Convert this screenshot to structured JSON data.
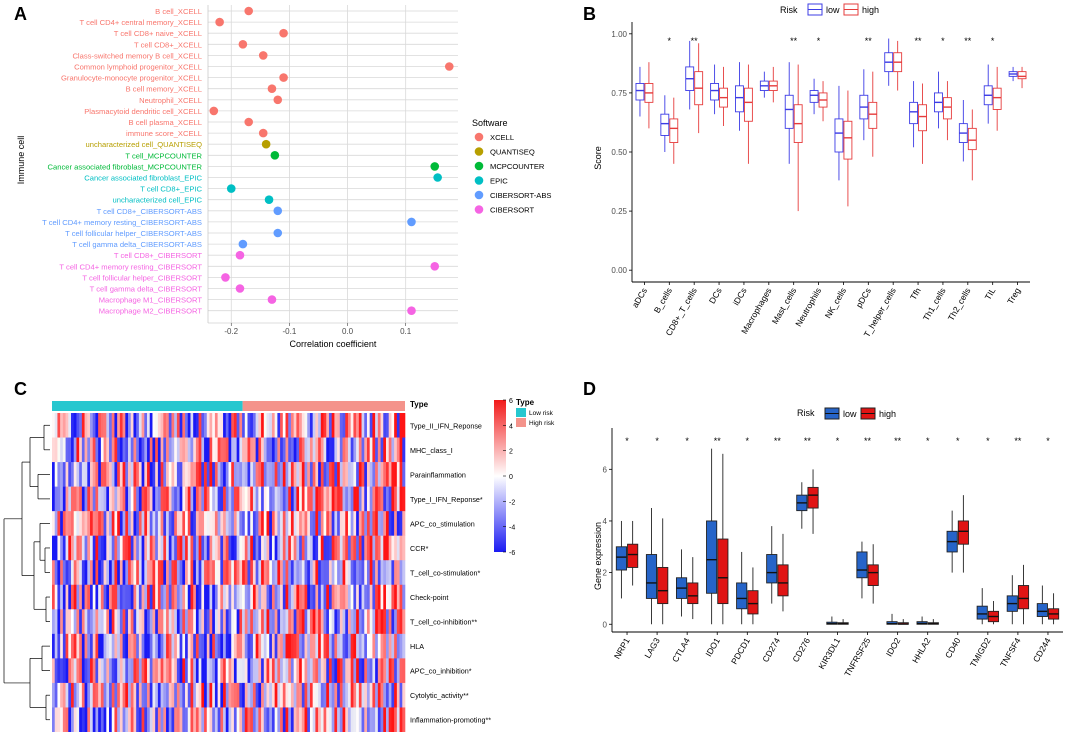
{
  "panel_letters": {
    "A": "A",
    "B": "B",
    "C": "C",
    "D": "D"
  },
  "chart_data": [
    {
      "panel": "A",
      "type": "scatter",
      "title": "",
      "xlabel": "Correlation coefficient",
      "ylabel": "Immune cell",
      "xlim": [
        -0.24,
        0.19
      ],
      "xticks": [
        -0.2,
        -0.1,
        0.0,
        0.1
      ],
      "xtick_labels": [
        "-0.2",
        "-0.1",
        "0.0",
        "0.1"
      ],
      "legend_title": "Software",
      "legend": [
        {
          "name": "XCELL",
          "color": "#F8766D"
        },
        {
          "name": "QUANTISEQ",
          "color": "#B79F00"
        },
        {
          "name": "MCPCOUNTER",
          "color": "#00BA38"
        },
        {
          "name": "EPIC",
          "color": "#00BFC4"
        },
        {
          "name": "CIBERSORT-ABS",
          "color": "#619CFF"
        },
        {
          "name": "CIBERSORT",
          "color": "#F564E3"
        }
      ],
      "points": [
        {
          "label": "B cell_XCELL",
          "software": "XCELL",
          "value": -0.17
        },
        {
          "label": "T cell CD4+ central memory_XCELL",
          "software": "XCELL",
          "value": -0.22
        },
        {
          "label": "T cell CD8+ naive_XCELL",
          "software": "XCELL",
          "value": -0.11
        },
        {
          "label": "T cell CD8+_XCELL",
          "software": "XCELL",
          "value": -0.18
        },
        {
          "label": "Class-switched memory B cell_XCELL",
          "software": "XCELL",
          "value": -0.145
        },
        {
          "label": "Common lymphoid progenitor_XCELL",
          "software": "XCELL",
          "value": 0.175
        },
        {
          "label": "Granulocyte-monocyte progenitor_XCELL",
          "software": "XCELL",
          "value": -0.11
        },
        {
          "label": "B cell memory_XCELL",
          "software": "XCELL",
          "value": -0.13
        },
        {
          "label": "Neutrophil_XCELL",
          "software": "XCELL",
          "value": -0.12
        },
        {
          "label": "Plasmacytoid dendritic cell_XCELL",
          "software": "XCELL",
          "value": -0.23
        },
        {
          "label": "B cell plasma_XCELL",
          "software": "XCELL",
          "value": -0.17
        },
        {
          "label": "immune score_XCELL",
          "software": "XCELL",
          "value": -0.145
        },
        {
          "label": "uncharacterized cell_QUANTISEQ",
          "software": "QUANTISEQ",
          "value": -0.14
        },
        {
          "label": "T cell_MCPCOUNTER",
          "software": "MCPCOUNTER",
          "value": -0.125
        },
        {
          "label": "Cancer associated fibroblast_MCPCOUNTER",
          "software": "MCPCOUNTER",
          "value": 0.15
        },
        {
          "label": "Cancer associated fibroblast_EPIC",
          "software": "EPIC",
          "value": 0.155
        },
        {
          "label": "T cell CD8+_EPIC",
          "software": "EPIC",
          "value": -0.2
        },
        {
          "label": "uncharacterized cell_EPIC",
          "software": "EPIC",
          "value": -0.135
        },
        {
          "label": "T cell CD8+_CIBERSORT-ABS",
          "software": "CIBERSORT-ABS",
          "value": -0.12
        },
        {
          "label": "T cell CD4+ memory resting_CIBERSORT-ABS",
          "software": "CIBERSORT-ABS",
          "value": 0.11
        },
        {
          "label": "T cell follicular helper_CIBERSORT-ABS",
          "software": "CIBERSORT-ABS",
          "value": -0.12
        },
        {
          "label": "T cell gamma delta_CIBERSORT-ABS",
          "software": "CIBERSORT-ABS",
          "value": -0.18
        },
        {
          "label": "T cell CD8+_CIBERSORT",
          "software": "CIBERSORT",
          "value": -0.185
        },
        {
          "label": "T cell CD4+ memory resting_CIBERSORT",
          "software": "CIBERSORT",
          "value": 0.15
        },
        {
          "label": "T cell follicular helper_CIBERSORT",
          "software": "CIBERSORT",
          "value": -0.21
        },
        {
          "label": "T cell gamma delta_CIBERSORT",
          "software": "CIBERSORT",
          "value": -0.185
        },
        {
          "label": "Macrophage M1_CIBERSORT",
          "software": "CIBERSORT",
          "value": -0.13
        },
        {
          "label": "Macrophage M2_CIBERSORT",
          "software": "CIBERSORT",
          "value": 0.11
        }
      ]
    },
    {
      "panel": "B",
      "type": "box",
      "legend_title": "Risk",
      "legend": [
        {
          "name": "low",
          "color": "#3C3CE6"
        },
        {
          "name": "high",
          "color": "#E63C3C"
        }
      ],
      "ylabel": "Score",
      "xlabel": "",
      "ylim": [
        -0.05,
        1.05
      ],
      "yticks": [
        0.0,
        0.25,
        0.5,
        0.75,
        1.0
      ],
      "ytick_labels": [
        "0.00",
        "0.25",
        "0.50",
        "0.75",
        "1.00"
      ],
      "categories": [
        "aDCs",
        "B_cells",
        "CD8+_T_cells",
        "DCs",
        "iDCs",
        "Macrophages",
        "Mast_cells",
        "Neutrophils",
        "NK_cells",
        "pDCs",
        "T_helper_cells",
        "Tfh",
        "Th1_cells",
        "Th2_cells",
        "TIL",
        "Treg"
      ],
      "significance": [
        "",
        "*",
        "**",
        "",
        "",
        "",
        "**",
        "*",
        "",
        "**",
        "",
        "**",
        "*",
        "**",
        "*",
        ""
      ],
      "series": [
        {
          "name": "low",
          "boxes": [
            [
              0.65,
              0.72,
              0.76,
              0.79,
              0.86
            ],
            [
              0.5,
              0.57,
              0.62,
              0.66,
              0.74
            ],
            [
              0.68,
              0.76,
              0.81,
              0.86,
              0.97
            ],
            [
              0.66,
              0.72,
              0.76,
              0.79,
              0.87
            ],
            [
              0.59,
              0.67,
              0.73,
              0.78,
              0.88
            ],
            [
              0.73,
              0.76,
              0.78,
              0.8,
              0.84
            ],
            [
              0.45,
              0.6,
              0.68,
              0.74,
              0.88
            ],
            [
              0.66,
              0.71,
              0.74,
              0.76,
              0.81
            ],
            [
              0.38,
              0.5,
              0.58,
              0.64,
              0.78
            ],
            [
              0.55,
              0.64,
              0.69,
              0.74,
              0.85
            ],
            [
              0.78,
              0.84,
              0.88,
              0.92,
              0.98
            ],
            [
              0.52,
              0.62,
              0.67,
              0.71,
              0.8
            ],
            [
              0.6,
              0.67,
              0.71,
              0.75,
              0.84
            ],
            [
              0.46,
              0.54,
              0.58,
              0.62,
              0.72
            ],
            [
              0.62,
              0.7,
              0.74,
              0.78,
              0.87
            ],
            [
              0.8,
              0.82,
              0.83,
              0.84,
              0.86
            ]
          ]
        },
        {
          "name": "high",
          "boxes": [
            [
              0.6,
              0.71,
              0.75,
              0.79,
              0.88
            ],
            [
              0.45,
              0.54,
              0.6,
              0.64,
              0.73
            ],
            [
              0.58,
              0.7,
              0.77,
              0.84,
              0.96
            ],
            [
              0.61,
              0.69,
              0.73,
              0.77,
              0.86
            ],
            [
              0.45,
              0.63,
              0.71,
              0.77,
              0.87
            ],
            [
              0.71,
              0.76,
              0.78,
              0.8,
              0.86
            ],
            [
              0.25,
              0.54,
              0.62,
              0.7,
              0.87
            ],
            [
              0.63,
              0.69,
              0.72,
              0.75,
              0.8
            ],
            [
              0.27,
              0.47,
              0.56,
              0.63,
              0.76
            ],
            [
              0.48,
              0.6,
              0.66,
              0.71,
              0.84
            ],
            [
              0.76,
              0.84,
              0.88,
              0.92,
              0.97
            ],
            [
              0.45,
              0.59,
              0.65,
              0.7,
              0.79
            ],
            [
              0.55,
              0.64,
              0.69,
              0.73,
              0.8
            ],
            [
              0.38,
              0.51,
              0.55,
              0.6,
              0.68
            ],
            [
              0.59,
              0.68,
              0.73,
              0.77,
              0.86
            ],
            [
              0.77,
              0.81,
              0.82,
              0.84,
              0.86
            ]
          ]
        }
      ]
    },
    {
      "panel": "C",
      "type": "heatmap",
      "color_scale_ticks": [
        "6",
        "4",
        "2",
        "0",
        "-2",
        "-4",
        "-6"
      ],
      "annotation_label": "Type",
      "legend_title": "Type",
      "legend": [
        {
          "name": "Low risk",
          "color": "#27C7CF"
        },
        {
          "name": "High risk",
          "color": "#F4938B"
        }
      ],
      "rows": [
        "Type_II_IFN_Reponse",
        "MHC_class_I",
        "Parainflammation",
        "Type_I_IFN_Reponse*",
        "APC_co_stimulation",
        "CCR*",
        "T_cell_co-stimulation*",
        "Check-point",
        "T_cell_co-inhibition**",
        "HLA",
        "APC_co_inhibition*",
        "Cytolytic_activity**",
        "Inflammation-promoting**"
      ]
    },
    {
      "panel": "D",
      "type": "box",
      "legend_title": "Risk",
      "legend": [
        {
          "name": "low",
          "color": "#2664C8"
        },
        {
          "name": "high",
          "color": "#E01414"
        }
      ],
      "ylabel": "Gene expression",
      "xlabel": "",
      "ylim": [
        -0.3,
        7.6
      ],
      "yticks": [
        0,
        2,
        4,
        6
      ],
      "ytick_labels": [
        "0",
        "2",
        "4",
        "6"
      ],
      "categories": [
        "NRP1",
        "LAG3",
        "CTLA4",
        "IDO1",
        "PDCD1",
        "CD274",
        "CD276",
        "KIR3DL1",
        "TNFRSF25",
        "IDO2",
        "HHLA2",
        "CD40",
        "TMIGD2",
        "TNFSF4",
        "CD244"
      ],
      "significance": [
        "*",
        "*",
        "*",
        "**",
        "*",
        "**",
        "**",
        "*",
        "**",
        "**",
        "*",
        "*",
        "*",
        "**",
        "*"
      ],
      "series": [
        {
          "name": "low",
          "boxes": [
            [
              1.0,
              2.1,
              2.6,
              3.0,
              4.0
            ],
            [
              0.0,
              1.0,
              1.6,
              2.7,
              4.5
            ],
            [
              0.3,
              1.0,
              1.4,
              1.8,
              2.9
            ],
            [
              0.0,
              1.2,
              2.5,
              4.0,
              6.8
            ],
            [
              0.0,
              0.6,
              1.0,
              1.6,
              2.8
            ],
            [
              0.8,
              1.6,
              2.0,
              2.7,
              3.8
            ],
            [
              3.7,
              4.4,
              4.7,
              5.0,
              5.5
            ],
            [
              0.0,
              0.0,
              0.02,
              0.08,
              0.3
            ],
            [
              1.0,
              1.8,
              2.1,
              2.8,
              3.2
            ],
            [
              0.0,
              0.0,
              0.02,
              0.1,
              0.4
            ],
            [
              0.0,
              0.0,
              0.03,
              0.1,
              0.3
            ],
            [
              2.0,
              2.8,
              3.2,
              3.6,
              4.4
            ],
            [
              0.0,
              0.2,
              0.4,
              0.7,
              1.4
            ],
            [
              0.0,
              0.5,
              0.8,
              1.1,
              1.9
            ],
            [
              0.0,
              0.3,
              0.5,
              0.8,
              1.5
            ]
          ]
        },
        {
          "name": "high",
          "boxes": [
            [
              1.5,
              2.2,
              2.7,
              3.1,
              4.0
            ],
            [
              0.0,
              0.8,
              1.3,
              2.2,
              4.1
            ],
            [
              0.2,
              0.8,
              1.1,
              1.6,
              2.6
            ],
            [
              0.0,
              0.8,
              1.8,
              3.3,
              6.6
            ],
            [
              0.0,
              0.4,
              0.8,
              1.3,
              2.2
            ],
            [
              0.5,
              1.1,
              1.6,
              2.3,
              3.5
            ],
            [
              3.5,
              4.5,
              5.0,
              5.3,
              6.0
            ],
            [
              0.0,
              0.0,
              0.02,
              0.06,
              0.2
            ],
            [
              0.8,
              1.5,
              2.0,
              2.3,
              3.1
            ],
            [
              0.0,
              0.0,
              0.01,
              0.06,
              0.2
            ],
            [
              0.0,
              0.0,
              0.02,
              0.06,
              0.2
            ],
            [
              2.0,
              3.1,
              3.6,
              4.0,
              5.0
            ],
            [
              0.0,
              0.1,
              0.3,
              0.5,
              0.9
            ],
            [
              0.0,
              0.6,
              1.0,
              1.5,
              2.3
            ],
            [
              0.0,
              0.2,
              0.4,
              0.6,
              1.2
            ]
          ]
        }
      ]
    }
  ]
}
